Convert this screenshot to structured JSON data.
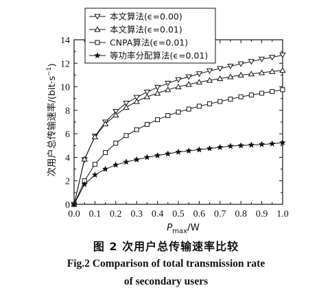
{
  "chart_data": {
    "type": "line",
    "x": [
      0.0,
      0.05,
      0.1,
      0.15,
      0.2,
      0.25,
      0.3,
      0.35,
      0.4,
      0.45,
      0.5,
      0.55,
      0.6,
      0.65,
      0.7,
      0.75,
      0.8,
      0.85,
      0.9,
      0.95,
      1.0
    ],
    "series": [
      {
        "name": "本文算法(ϵ=0.00)",
        "marker": "triangle-down",
        "values": [
          0,
          3.8,
          5.8,
          7.0,
          7.9,
          8.6,
          9.1,
          9.55,
          9.95,
          10.3,
          10.6,
          10.85,
          11.1,
          11.35,
          11.55,
          11.75,
          11.95,
          12.15,
          12.35,
          12.5,
          12.7
        ]
      },
      {
        "name": "本文算法(ϵ=0.01)",
        "marker": "triangle-up",
        "values": [
          0,
          3.85,
          5.75,
          6.85,
          7.6,
          8.25,
          8.75,
          9.15,
          9.45,
          9.75,
          10.0,
          10.2,
          10.4,
          10.55,
          10.7,
          10.85,
          11.0,
          11.1,
          11.2,
          11.3,
          11.4
        ]
      },
      {
        "name": "CNPA算法(ϵ=0.01)",
        "marker": "square",
        "values": [
          0,
          2.0,
          3.4,
          4.4,
          5.2,
          5.85,
          6.35,
          6.8,
          7.2,
          7.55,
          7.85,
          8.1,
          8.35,
          8.55,
          8.75,
          8.95,
          9.15,
          9.3,
          9.45,
          9.6,
          9.75
        ]
      },
      {
        "name": "等功率分配算法(ϵ=0.01)",
        "marker": "star",
        "values": [
          0,
          1.7,
          2.5,
          3.0,
          3.35,
          3.6,
          3.8,
          4.0,
          4.15,
          4.3,
          4.45,
          4.55,
          4.65,
          4.75,
          4.85,
          4.95,
          5.0,
          5.05,
          5.1,
          5.15,
          5.25
        ]
      }
    ],
    "xlim": [
      0.0,
      1.0
    ],
    "ylim": [
      0,
      14
    ],
    "xticks": [
      "0.0",
      "0.1",
      "0.2",
      "0.3",
      "0.4",
      "0.5",
      "0.6",
      "0.7",
      "0.8",
      "0.9",
      "1.0"
    ],
    "yticks": [
      "0",
      "2",
      "4",
      "6",
      "8",
      "10",
      "12",
      "14"
    ],
    "xlabel": "P_max/W",
    "ylabel": "次用户总传输速率/(bit·s⁻¹)",
    "legend_position": "top-left",
    "grid": false
  },
  "xlabel": {
    "main": "P",
    "sub": "max",
    "unit": "/W"
  },
  "ylabel": {
    "text": "次用户总传输速率/(bit·s",
    "sup": "−1",
    "close": ")"
  },
  "caption": {
    "cn": "图 2   次用户总传输速率比较",
    "en_line1": "Fig.2    Comparison of total transmission rate",
    "en_line2": "of secondary users"
  }
}
